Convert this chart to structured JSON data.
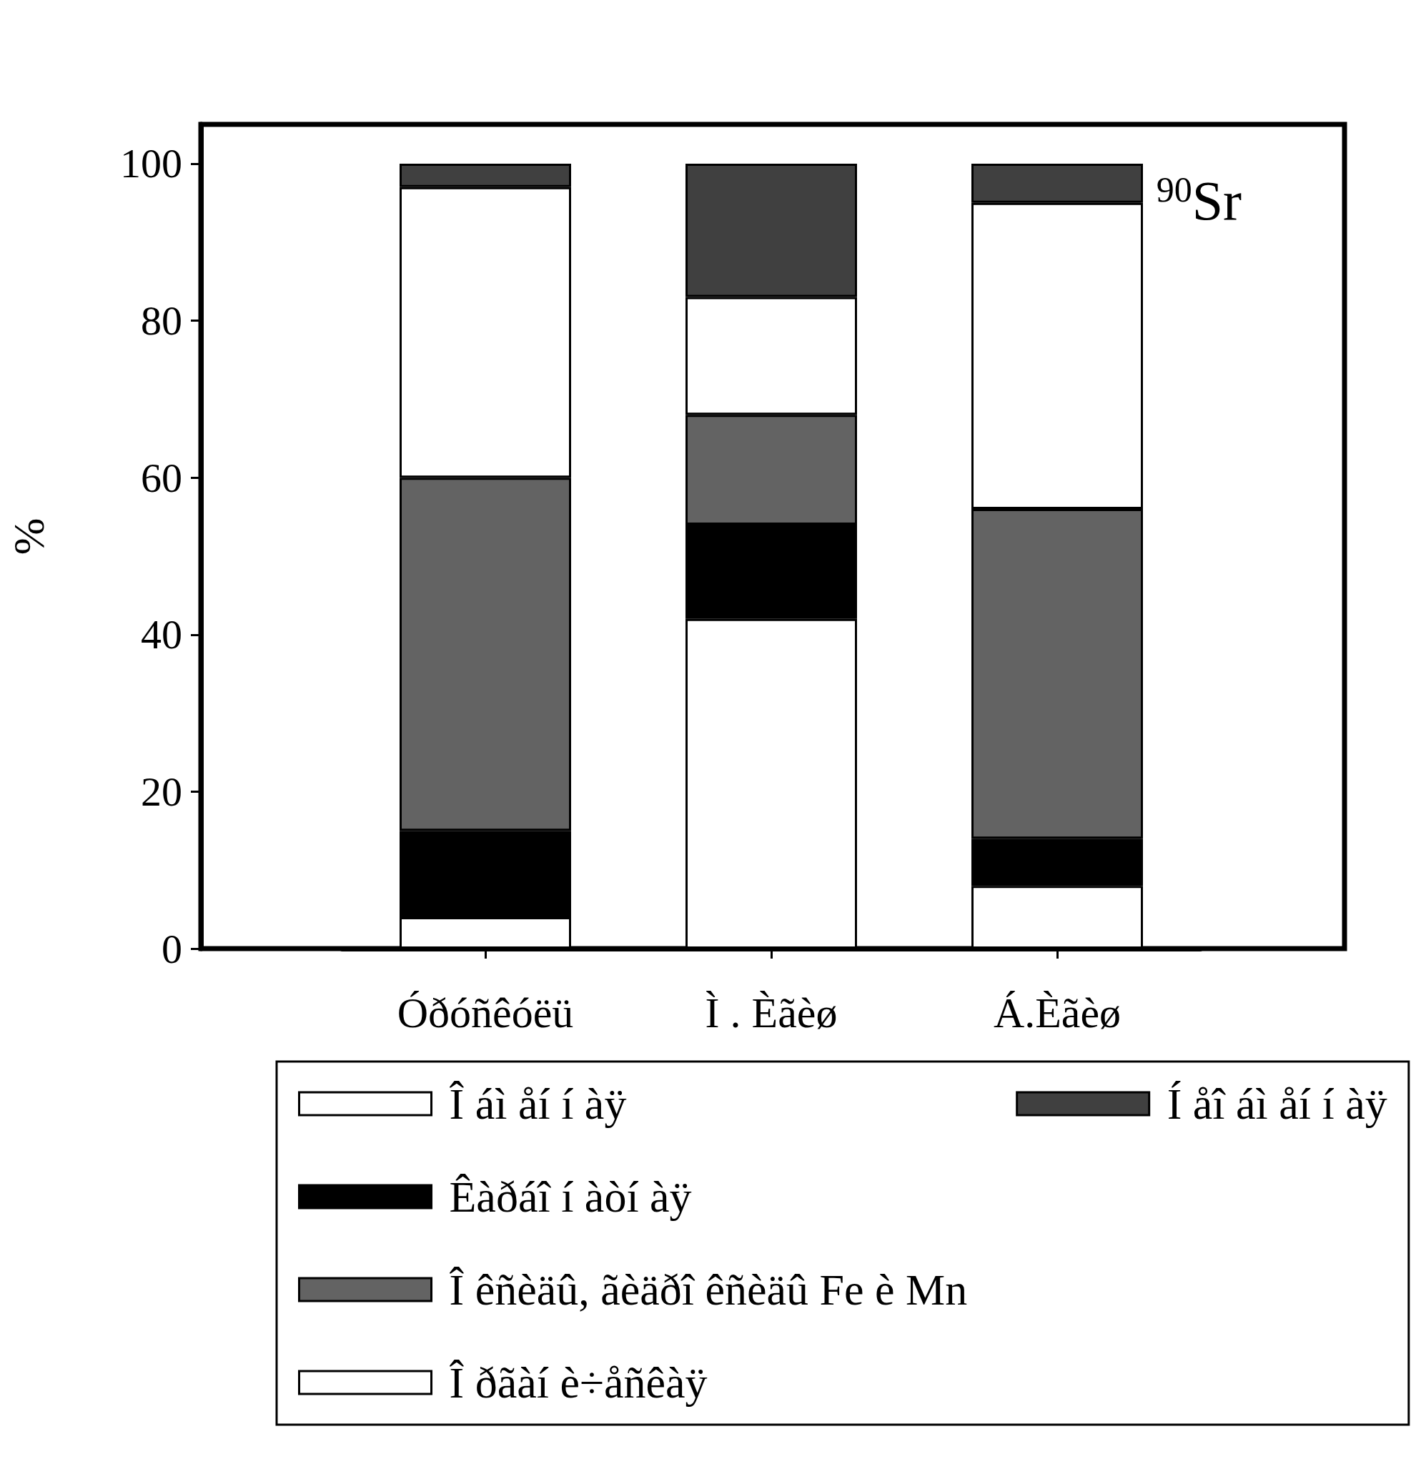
{
  "chart_data": {
    "type": "bar",
    "stacked": true,
    "ylabel": "%",
    "categories": [
      "Óðóñêóëü",
      "Ì . Èãèø",
      "Á.Èãèø"
    ],
    "series": [
      {
        "name": "Î áì åí í àÿ",
        "color": "#ffffff",
        "values": [
          4,
          42,
          8
        ]
      },
      {
        "name": "Êàðáî í àòí àÿ",
        "color": "#000000",
        "values": [
          11,
          12,
          6
        ]
      },
      {
        "name": "Î êñèäû, ãèäðî êñèäû Fe è Mn",
        "color": "#636363",
        "values": [
          45,
          14,
          42
        ]
      },
      {
        "name": "Î ðãàí è÷åñêàÿ",
        "color": "#ffffff",
        "values": [
          37,
          15,
          39
        ]
      },
      {
        "name": "Í åî áì åí í àÿ",
        "color": "#404040",
        "values": [
          3,
          17,
          5
        ]
      }
    ],
    "ylim": [
      0,
      105
    ],
    "yticks": [
      0,
      20,
      40,
      60,
      80,
      100
    ],
    "annotations": [
      "$^{90}$Sr"
    ],
    "legend": "bottom",
    "grid": false
  }
}
